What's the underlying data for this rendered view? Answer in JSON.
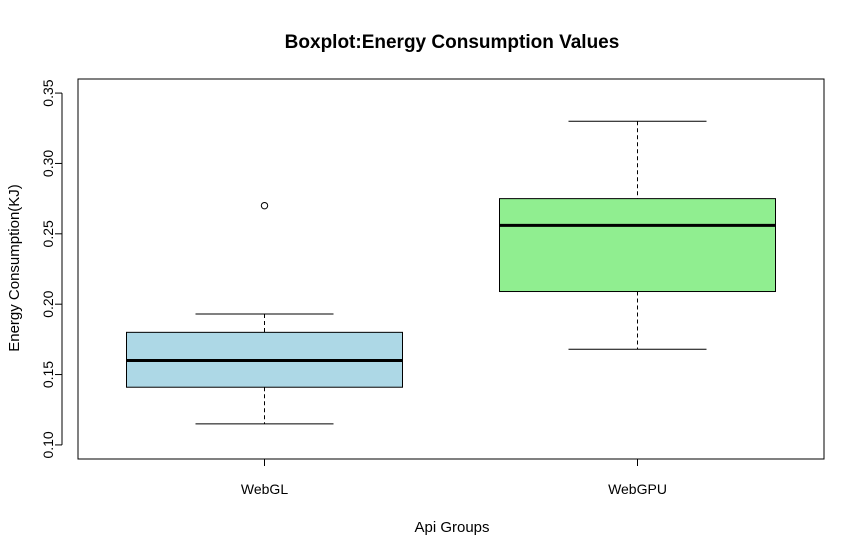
{
  "chart_data": {
    "type": "boxplot",
    "title": "Boxplot:Energy Consumption Values",
    "xlabel": "Api Groups",
    "ylabel": "Energy Consumption(KJ)",
    "ylim": [
      0.09,
      0.36
    ],
    "yticks": [
      0.1,
      0.15,
      0.2,
      0.25,
      0.3,
      0.35
    ],
    "ytick_labels": [
      "0.10",
      "0.15",
      "0.20",
      "0.25",
      "0.30",
      "0.35"
    ],
    "categories": [
      "WebGL",
      "WebGPU"
    ],
    "grid": false,
    "series": [
      {
        "name": "WebGL",
        "color": "#add8e6",
        "min": 0.115,
        "q1": 0.141,
        "median": 0.16,
        "q3": 0.18,
        "max": 0.193,
        "outliers": [
          0.27
        ]
      },
      {
        "name": "WebGPU",
        "color": "#90ee90",
        "min": 0.168,
        "q1": 0.209,
        "median": 0.256,
        "q3": 0.275,
        "max": 0.33,
        "outliers": []
      }
    ]
  }
}
